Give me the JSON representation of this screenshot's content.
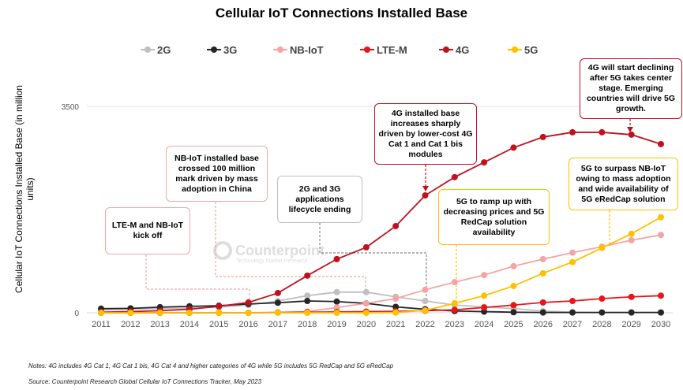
{
  "chart_data": {
    "type": "line",
    "title": "Cellular IoT Connections Installed Base",
    "ylabel": "Cellular IoT Connections Installed Base (in million units)",
    "xlabel": "",
    "ylim": [
      0,
      3500
    ],
    "yticks": [
      "0",
      "3500"
    ],
    "grid": true,
    "legend": "top",
    "x": [
      "2011",
      "2012",
      "2013",
      "2014",
      "2015",
      "2016",
      "2017",
      "2018",
      "2019",
      "2020",
      "2021",
      "2022",
      "2023",
      "2024",
      "2025",
      "2026",
      "2027",
      "2028",
      "2029",
      "2030"
    ],
    "series": [
      {
        "name": "2G",
        "color": "#bfbfbf",
        "values": [
          50,
          60,
          70,
          80,
          95,
          130,
          200,
          290,
          350,
          350,
          270,
          200,
          130,
          100,
          70,
          30,
          10,
          5,
          5,
          5
        ]
      },
      {
        "name": "3G",
        "color": "#262626",
        "values": [
          70,
          75,
          95,
          110,
          120,
          150,
          170,
          200,
          190,
          160,
          100,
          60,
          30,
          20,
          10,
          5,
          5,
          5,
          5,
          5
        ]
      },
      {
        "name": "NB-IoT",
        "color": "#f4a4a4",
        "values": [
          0,
          0,
          0,
          0,
          0,
          0,
          5,
          20,
          90,
          160,
          240,
          390,
          520,
          640,
          790,
          910,
          1020,
          1120,
          1230,
          1320
        ]
      },
      {
        "name": "LTE-M",
        "color": "#e8141b",
        "values": [
          0,
          0,
          0,
          0,
          0,
          0,
          5,
          10,
          15,
          20,
          25,
          35,
          50,
          90,
          130,
          175,
          200,
          240,
          270,
          290
        ]
      },
      {
        "name": "4G",
        "color": "#c0111f",
        "values": [
          10,
          20,
          35,
          60,
          110,
          175,
          335,
          630,
          910,
          1110,
          1470,
          1990,
          2300,
          2550,
          2800,
          2980,
          3060,
          3060,
          3020,
          2860
        ]
      },
      {
        "name": "5G",
        "color": "#ffc000",
        "values": [
          0,
          0,
          0,
          0,
          0,
          0,
          0,
          0,
          0,
          0,
          5,
          40,
          160,
          290,
          455,
          670,
          860,
          1100,
          1340,
          1620
        ]
      }
    ],
    "annotations": [
      {
        "text": "LTE-M and NB-IoT kick off",
        "color": "#f0a8a8"
      },
      {
        "text": "NB-IoT installed base crossed 100 million mark driven by mass adoption in China",
        "color": "#f0a8a8"
      },
      {
        "text": "2G and 3G applications lifecycle ending",
        "color": "#bfbfbf"
      },
      {
        "text": "4G installed base increases sharply driven by lower-cost 4G Cat 1 and Cat 1 bis modules",
        "color": "#c0111f"
      },
      {
        "text": "5G to ramp up with decreasing prices and 5G RedCap solution availability",
        "color": "#ffc000"
      },
      {
        "text": "4G will start declining after 5G takes center stage. Emerging countries will drive 5G growth.",
        "color": "#c0111f"
      },
      {
        "text": "5G to surpass NB-IoT owing to mass adoption and wide availability of 5G eRedCap solution",
        "color": "#ffc000"
      }
    ]
  },
  "watermark": {
    "brand": "Counterpoint",
    "tagline": "Technology Market Research"
  },
  "notes": "Notes: 4G includes 4G Cat 1, 4G Cat 1 bis, 4G Cat 4 and higher categories of 4G while 5G includes 5G RedCap and 5G eRedCap",
  "source": "Source: Counterpoint Research Global Cellular IoT Connections Tracker, May 2023"
}
